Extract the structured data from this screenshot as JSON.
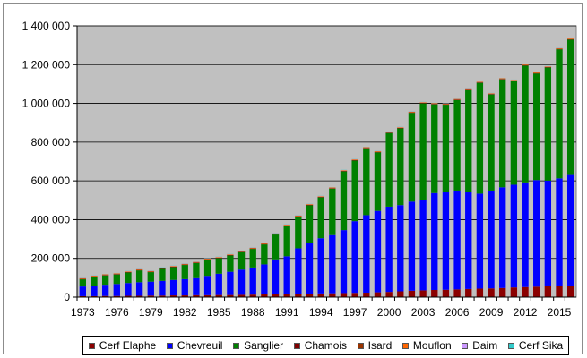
{
  "chart_data": {
    "type": "bar",
    "stacked": true,
    "title": "",
    "xlabel": "",
    "ylabel": "",
    "ylim": [
      0,
      1400000
    ],
    "yticks": [
      0,
      200000,
      400000,
      600000,
      800000,
      1000000,
      1200000,
      1400000
    ],
    "ytick_labels": [
      "0",
      "200 000",
      "400 000",
      "600 000",
      "800 000",
      "1 000 000",
      "1 200 000",
      "1 400 000"
    ],
    "grid": "horizontal",
    "legend_position": "bottom",
    "plot_background": "#c0c0c0",
    "categories": [
      "1973",
      "1974",
      "1975",
      "1976",
      "1977",
      "1978",
      "1979",
      "1980",
      "1981",
      "1982",
      "1983",
      "1984",
      "1985",
      "1986",
      "1987",
      "1988",
      "1989",
      "1990",
      "1991",
      "1992",
      "1993",
      "1994",
      "1995",
      "1996",
      "1997",
      "1998",
      "1999",
      "2000",
      "2001",
      "2002",
      "2003",
      "2004",
      "2005",
      "2006",
      "2007",
      "2008",
      "2009",
      "2010",
      "2011",
      "2012",
      "2013",
      "2014",
      "2015",
      "2016"
    ],
    "xtick_labels": [
      "1973",
      "1976",
      "1979",
      "1982",
      "1985",
      "1988",
      "1991",
      "1994",
      "1997",
      "2000",
      "2003",
      "2006",
      "2009",
      "2012",
      "2015"
    ],
    "series": [
      {
        "name": "Cerf Elaphe",
        "color": "#8b0000",
        "values": [
          5000,
          5000,
          6000,
          6000,
          7000,
          7000,
          8000,
          8000,
          9000,
          9000,
          10000,
          10000,
          11000,
          11000,
          12000,
          13000,
          14000,
          15000,
          16000,
          17000,
          18000,
          19000,
          20000,
          21000,
          22000,
          23000,
          25000,
          27000,
          30000,
          33000,
          35000,
          37000,
          38000,
          40000,
          42000,
          44000,
          45000,
          47000,
          50000,
          52000,
          54000,
          56000,
          58000,
          60000
        ]
      },
      {
        "name": "Chevreuil",
        "color": "#0000ff",
        "values": [
          50000,
          55000,
          58000,
          62000,
          66000,
          70000,
          72000,
          76000,
          80000,
          84000,
          88000,
          100000,
          110000,
          120000,
          130000,
          140000,
          155000,
          180000,
          195000,
          235000,
          260000,
          285000,
          300000,
          325000,
          370000,
          400000,
          420000,
          440000,
          445000,
          460000,
          465000,
          500000,
          505000,
          510000,
          500000,
          490000,
          505000,
          520000,
          530000,
          540000,
          550000,
          545000,
          555000,
          575000
        ]
      },
      {
        "name": "Sanglier",
        "color": "#008000",
        "values": [
          37000,
          45000,
          48000,
          49000,
          54000,
          61000,
          49000,
          62000,
          66000,
          73000,
          78000,
          83000,
          80000,
          84000,
          90000,
          96000,
          103000,
          128000,
          157000,
          163000,
          196000,
          211000,
          240000,
          303000,
          313000,
          345000,
          302000,
          380000,
          396000,
          458000,
          500000,
          458000,
          450000,
          467000,
          530000,
          572000,
          496000,
          557000,
          535000,
          603000,
          550000,
          584000,
          666000,
          694000
        ]
      },
      {
        "name": "Chamois",
        "color": "#800000",
        "values": [
          2000,
          2000,
          2000,
          2000,
          2000,
          2000,
          2000,
          2000,
          2000,
          2000,
          2000,
          2000,
          2000,
          2000,
          2000,
          2000,
          2000,
          2000,
          2000,
          2000,
          2000,
          2000,
          2000,
          2000,
          2000,
          2000,
          2000,
          2000,
          2000,
          2000,
          2000,
          2000,
          2000,
          2000,
          2000,
          2000,
          2000,
          2000,
          2000,
          2000,
          2000,
          2000,
          2000,
          2000
        ]
      },
      {
        "name": "Isard",
        "color": "#993300",
        "values": [
          1000,
          1000,
          1000,
          1000,
          1000,
          1000,
          1000,
          1000,
          1000,
          1000,
          1000,
          1000,
          1000,
          1000,
          1000,
          1000,
          1000,
          1000,
          1000,
          1000,
          1000,
          1000,
          1000,
          1000,
          1000,
          1000,
          1000,
          1000,
          1000,
          1000,
          1000,
          1000,
          1000,
          1000,
          1000,
          1000,
          1000,
          1000,
          1000,
          1000,
          1000,
          1000,
          1000,
          1000
        ]
      },
      {
        "name": "Mouflon",
        "color": "#ff6600",
        "values": [
          3000,
          3000,
          3000,
          3000,
          3000,
          3000,
          3000,
          3000,
          3000,
          3000,
          3000,
          3000,
          3000,
          3000,
          3000,
          3000,
          3000,
          3000,
          3000,
          3000,
          3000,
          3000,
          3000,
          3000,
          3000,
          3000,
          3000,
          3000,
          3000,
          3000,
          3000,
          3000,
          3000,
          3000,
          3000,
          3000,
          3000,
          3000,
          3000,
          3000,
          3000,
          3000,
          3000,
          3000
        ]
      },
      {
        "name": "Daim",
        "color": "#cc99ff",
        "values": [
          1000,
          1000,
          1000,
          1000,
          1000,
          1000,
          1000,
          1000,
          1000,
          1000,
          1000,
          1000,
          1000,
          1000,
          1000,
          1000,
          1000,
          1000,
          1000,
          1000,
          1000,
          1000,
          1000,
          1000,
          1000,
          1000,
          1000,
          1000,
          1000,
          1000,
          1000,
          1000,
          1000,
          1000,
          1000,
          1000,
          1000,
          1000,
          1000,
          1000,
          1000,
          1000,
          1000,
          1000
        ]
      },
      {
        "name": "Cerf Sika",
        "color": "#33cccc",
        "values": [
          1000,
          1000,
          1000,
          1000,
          1000,
          1000,
          1000,
          1000,
          1000,
          1000,
          1000,
          1000,
          1000,
          1000,
          1000,
          1000,
          1000,
          1000,
          1000,
          1000,
          1000,
          1000,
          1000,
          1000,
          1000,
          1000,
          1000,
          1000,
          1000,
          1000,
          1000,
          1000,
          1000,
          1000,
          1000,
          1000,
          1000,
          1000,
          1000,
          1000,
          1000,
          1000,
          1000,
          1000
        ]
      }
    ]
  }
}
